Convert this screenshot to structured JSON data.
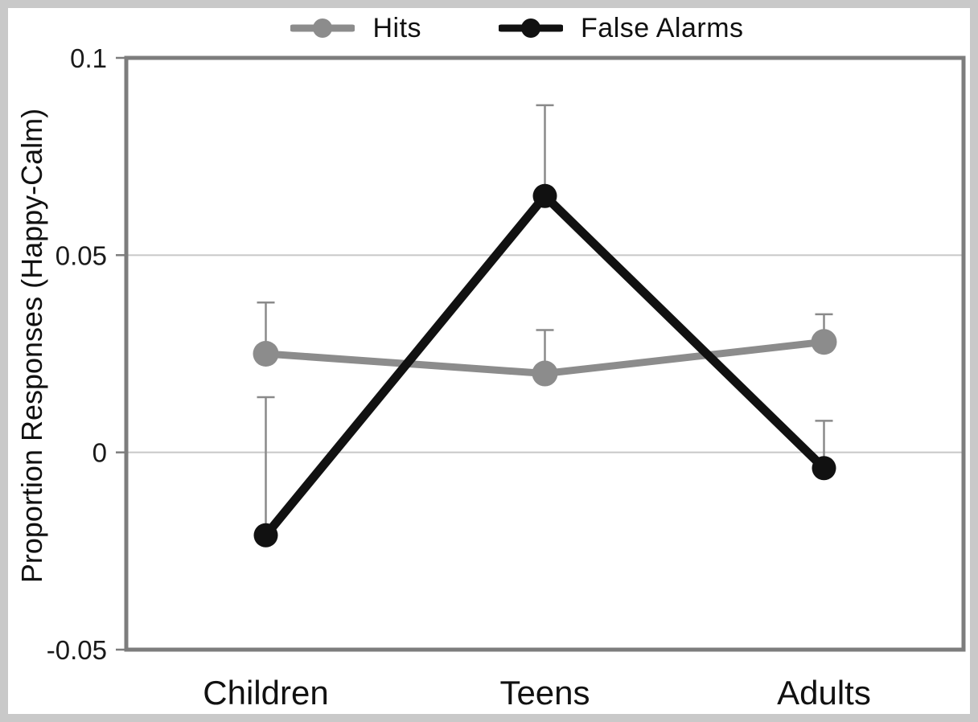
{
  "colors": {
    "page_border": "#c9c9c9",
    "frame": "#7d7d7d",
    "grid": "#c8c8c8",
    "error_bar": "#8a8a8a",
    "text": "#1a1a1a"
  },
  "chart_data": {
    "type": "line",
    "categories": [
      "Children",
      "Teens",
      "Adults"
    ],
    "series": [
      {
        "name": "Hits",
        "color": "#8c8c8c",
        "values": [
          0.025,
          0.02,
          0.028
        ],
        "error_upper": [
          0.013,
          0.011,
          0.007
        ]
      },
      {
        "name": "False Alarms",
        "color": "#111111",
        "values": [
          -0.021,
          0.065,
          -0.004
        ],
        "error_upper": [
          0.035,
          0.023,
          0.012
        ]
      }
    ],
    "title": "",
    "xlabel": "",
    "ylabel": "Proportion Responses (Happy-Calm)",
    "ylim": [
      -0.05,
      0.1
    ],
    "yticks": [
      0.1,
      0.05,
      0,
      -0.05
    ],
    "ytick_labels": [
      "0.1",
      "0.05",
      "0",
      "-0.05"
    ],
    "gridlines": [
      0.05,
      0
    ],
    "grid": "horizontal-only",
    "legend_position": "top",
    "error_bars": "upper-only"
  }
}
